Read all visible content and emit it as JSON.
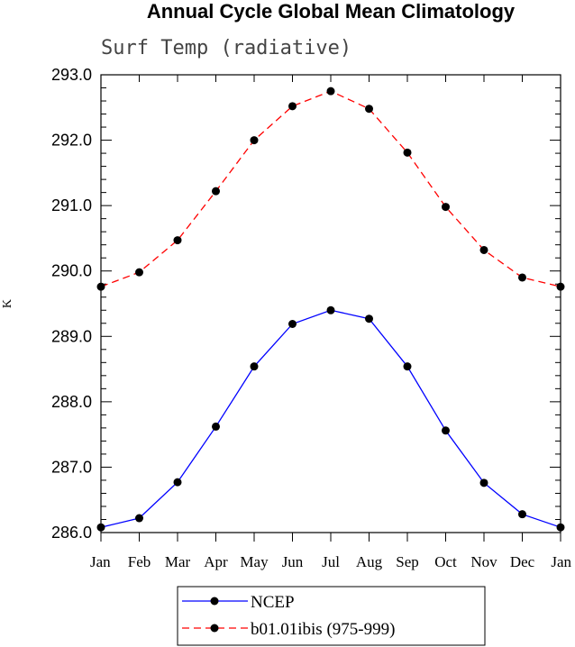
{
  "chart_data": {
    "type": "line",
    "title": "Annual Cycle Global Mean Climatology",
    "subtitle": "Surf Temp (radiative)",
    "xlabel": "",
    "ylabel": "K",
    "categories": [
      "Jan",
      "Feb",
      "Mar",
      "Apr",
      "May",
      "Jun",
      "Jul",
      "Aug",
      "Sep",
      "Oct",
      "Nov",
      "Dec",
      "Jan"
    ],
    "ylim": [
      286.0,
      293.0
    ],
    "yticks": [
      "286.0",
      "287.0",
      "288.0",
      "289.0",
      "290.0",
      "291.0",
      "292.0",
      "293.0"
    ],
    "grid": false,
    "legend_placement": "bottom-center",
    "series": [
      {
        "name": "NCEP",
        "color": "#0000ff",
        "dash": "solid",
        "marker": "circle",
        "values": [
          286.08,
          286.22,
          286.77,
          287.62,
          288.54,
          289.19,
          289.4,
          289.27,
          288.54,
          287.56,
          286.76,
          286.28,
          286.08
        ]
      },
      {
        "name": "b01.01ibis (975-999)",
        "color": "#ff0000",
        "dash": "dashed",
        "marker": "circle",
        "values": [
          289.76,
          289.98,
          290.47,
          291.22,
          292.0,
          292.52,
          292.75,
          292.48,
          291.81,
          290.98,
          290.32,
          289.9,
          289.76
        ]
      }
    ]
  }
}
